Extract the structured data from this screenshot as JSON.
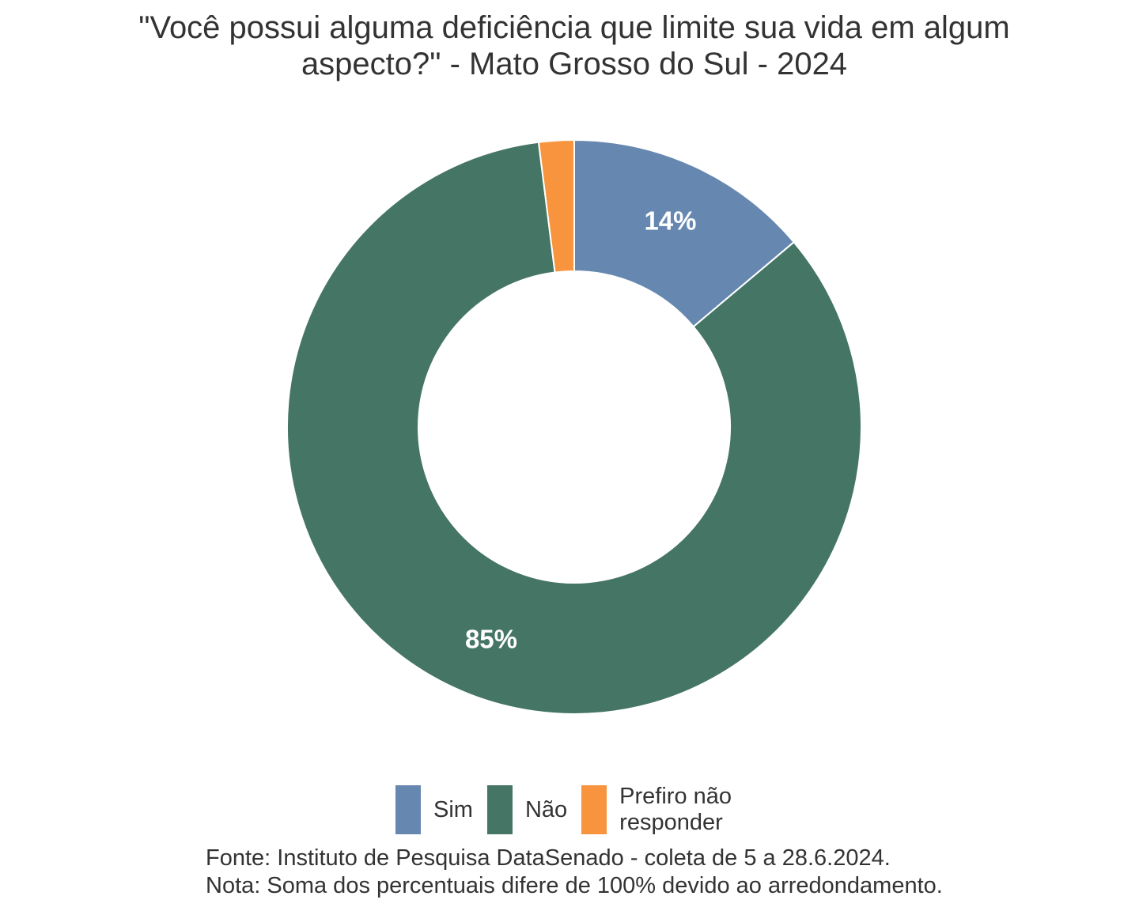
{
  "chart_data": {
    "type": "pie",
    "variant": "donut",
    "title_lines": [
      "\"Você possui alguma deficiência que limite sua vida em algum",
      "aspecto?\" - Mato Grosso do Sul - 2024"
    ],
    "categories": [
      "Sim",
      "Não",
      "Prefiro não responder"
    ],
    "values": [
      14,
      85,
      2
    ],
    "labels": [
      "14%",
      "85%",
      ""
    ],
    "colors": [
      "#6688B0",
      "#457564",
      "#F7943D"
    ],
    "legend": {
      "placement": "bottom",
      "items": [
        {
          "label": "Sim",
          "color": "#6688B0"
        },
        {
          "label": "Não",
          "color": "#457564"
        },
        {
          "label": "Prefiro não\nresponder",
          "color": "#F7943D"
        }
      ]
    },
    "caption_lines": [
      "Fonte: Instituto de Pesquisa DataSenado - coleta de 5 a 28.6.2024.",
      "Nota: Soma dos percentuais difere de 100% devido ao arredondamento."
    ]
  }
}
